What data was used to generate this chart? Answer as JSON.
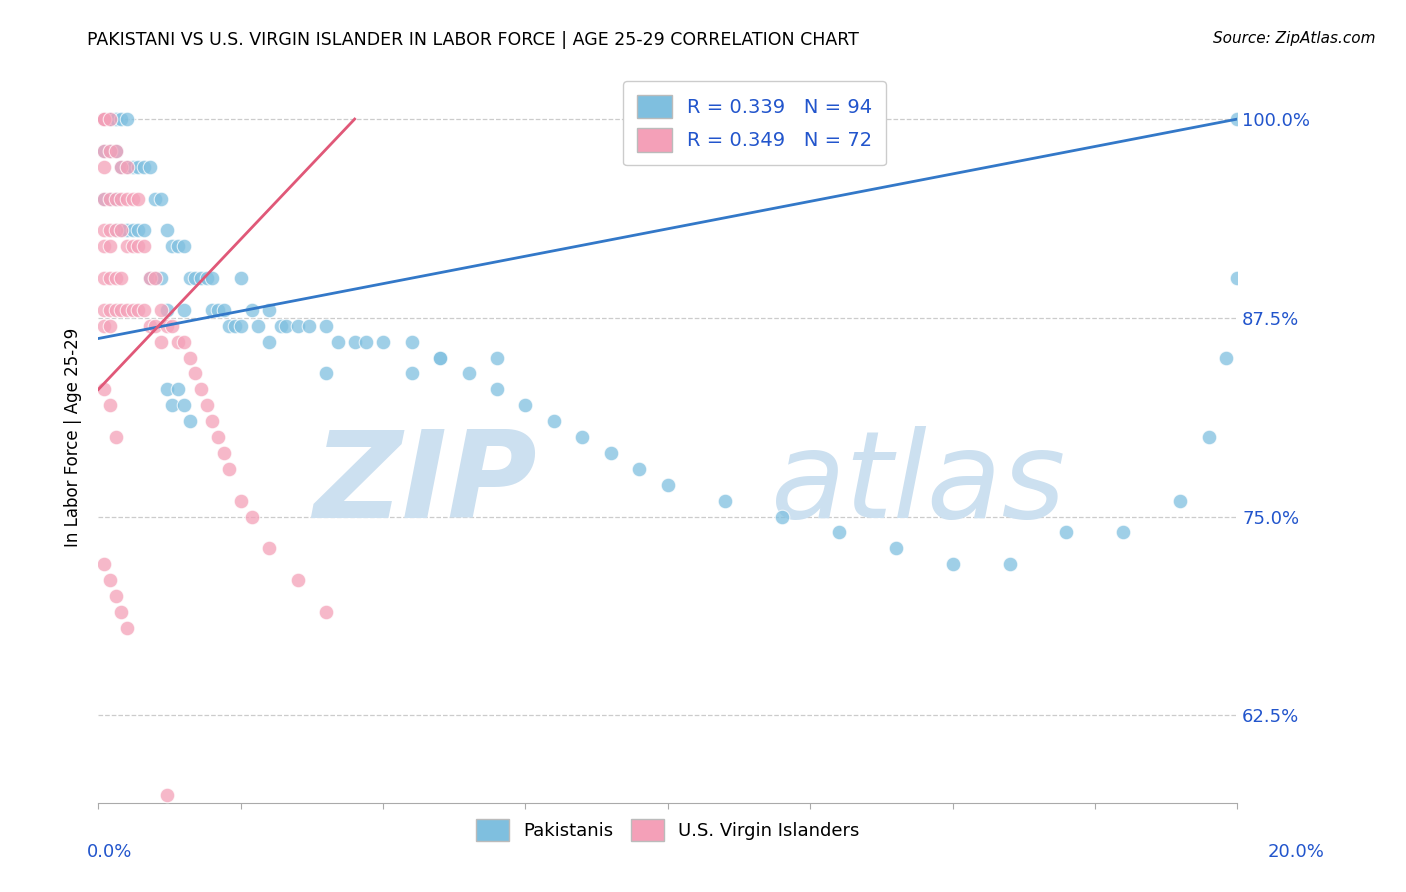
{
  "title": "PAKISTANI VS U.S. VIRGIN ISLANDER IN LABOR FORCE | AGE 25-29 CORRELATION CHART",
  "source": "Source: ZipAtlas.com",
  "ylabel": "In Labor Force | Age 25-29",
  "ytick_vals": [
    0.625,
    0.75,
    0.875,
    1.0
  ],
  "ytick_labels": [
    "62.5%",
    "75.0%",
    "87.5%",
    "100.0%"
  ],
  "legend_blue_label": "R = 0.339   N = 94",
  "legend_pink_label": "R = 0.349   N = 72",
  "legend_bottom_blue": "Pakistanis",
  "legend_bottom_pink": "U.S. Virgin Islanders",
  "blue_color": "#7fbfdf",
  "pink_color": "#f4a0b8",
  "blue_line_color": "#3378c8",
  "pink_line_color": "#e05878",
  "watermark_zip_color": "#cce0f0",
  "watermark_atlas_color": "#cce0f0",
  "xlim": [
    0.0,
    0.2
  ],
  "ylim": [
    0.57,
    1.03
  ],
  "blue_trend": [
    0.0,
    0.2,
    0.862,
    1.0
  ],
  "pink_trend_x0": 0.0,
  "pink_trend_x1": 0.045,
  "pink_trend_y0": 0.83,
  "pink_trend_y1": 1.0,
  "blue_x": [
    0.001,
    0.001,
    0.001,
    0.001,
    0.001,
    0.002,
    0.002,
    0.002,
    0.002,
    0.003,
    0.003,
    0.003,
    0.003,
    0.004,
    0.004,
    0.004,
    0.005,
    0.005,
    0.005,
    0.006,
    0.006,
    0.007,
    0.007,
    0.008,
    0.008,
    0.009,
    0.009,
    0.01,
    0.01,
    0.011,
    0.011,
    0.012,
    0.012,
    0.013,
    0.014,
    0.015,
    0.015,
    0.016,
    0.017,
    0.018,
    0.019,
    0.02,
    0.02,
    0.021,
    0.022,
    0.023,
    0.024,
    0.025,
    0.025,
    0.027,
    0.028,
    0.03,
    0.03,
    0.032,
    0.033,
    0.035,
    0.037,
    0.04,
    0.042,
    0.045,
    0.047,
    0.05,
    0.055,
    0.06,
    0.065,
    0.07,
    0.075,
    0.08,
    0.085,
    0.09,
    0.095,
    0.1,
    0.11,
    0.12,
    0.13,
    0.14,
    0.15,
    0.16,
    0.17,
    0.18,
    0.19,
    0.195,
    0.198,
    0.2,
    0.2,
    0.012,
    0.013,
    0.014,
    0.015,
    0.016,
    0.04,
    0.055,
    0.06,
    0.07
  ],
  "blue_y": [
    1.0,
    1.0,
    1.0,
    0.98,
    0.95,
    1.0,
    1.0,
    0.98,
    0.95,
    1.0,
    0.98,
    0.95,
    0.93,
    1.0,
    0.97,
    0.93,
    1.0,
    0.97,
    0.93,
    0.97,
    0.93,
    0.97,
    0.93,
    0.97,
    0.93,
    0.97,
    0.9,
    0.95,
    0.9,
    0.95,
    0.9,
    0.93,
    0.88,
    0.92,
    0.92,
    0.92,
    0.88,
    0.9,
    0.9,
    0.9,
    0.9,
    0.9,
    0.88,
    0.88,
    0.88,
    0.87,
    0.87,
    0.9,
    0.87,
    0.88,
    0.87,
    0.88,
    0.86,
    0.87,
    0.87,
    0.87,
    0.87,
    0.87,
    0.86,
    0.86,
    0.86,
    0.86,
    0.86,
    0.85,
    0.84,
    0.83,
    0.82,
    0.81,
    0.8,
    0.79,
    0.78,
    0.77,
    0.76,
    0.75,
    0.74,
    0.73,
    0.72,
    0.72,
    0.74,
    0.74,
    0.76,
    0.8,
    0.85,
    0.9,
    1.0,
    0.83,
    0.82,
    0.83,
    0.82,
    0.81,
    0.84,
    0.84,
    0.85,
    0.85
  ],
  "pink_x": [
    0.001,
    0.001,
    0.001,
    0.001,
    0.001,
    0.001,
    0.001,
    0.001,
    0.001,
    0.001,
    0.001,
    0.002,
    0.002,
    0.002,
    0.002,
    0.002,
    0.002,
    0.002,
    0.002,
    0.003,
    0.003,
    0.003,
    0.003,
    0.003,
    0.004,
    0.004,
    0.004,
    0.004,
    0.004,
    0.005,
    0.005,
    0.005,
    0.005,
    0.006,
    0.006,
    0.006,
    0.007,
    0.007,
    0.007,
    0.008,
    0.008,
    0.009,
    0.009,
    0.01,
    0.01,
    0.011,
    0.011,
    0.012,
    0.013,
    0.014,
    0.015,
    0.016,
    0.017,
    0.018,
    0.019,
    0.02,
    0.021,
    0.022,
    0.023,
    0.025,
    0.027,
    0.03,
    0.035,
    0.04,
    0.001,
    0.002,
    0.003,
    0.001,
    0.002,
    0.003,
    0.004,
    0.005
  ],
  "pink_y": [
    1.0,
    1.0,
    1.0,
    0.98,
    0.97,
    0.95,
    0.93,
    0.92,
    0.9,
    0.88,
    0.87,
    1.0,
    0.98,
    0.95,
    0.93,
    0.92,
    0.9,
    0.88,
    0.87,
    0.98,
    0.95,
    0.93,
    0.9,
    0.88,
    0.97,
    0.95,
    0.93,
    0.9,
    0.88,
    0.97,
    0.95,
    0.92,
    0.88,
    0.95,
    0.92,
    0.88,
    0.95,
    0.92,
    0.88,
    0.92,
    0.88,
    0.9,
    0.87,
    0.9,
    0.87,
    0.88,
    0.86,
    0.87,
    0.87,
    0.86,
    0.86,
    0.85,
    0.84,
    0.83,
    0.82,
    0.81,
    0.8,
    0.79,
    0.78,
    0.76,
    0.75,
    0.73,
    0.71,
    0.69,
    0.83,
    0.82,
    0.8,
    0.72,
    0.71,
    0.7,
    0.69,
    0.68
  ],
  "pink_outlier_x": [
    0.012
  ],
  "pink_outlier_y": [
    0.575
  ]
}
